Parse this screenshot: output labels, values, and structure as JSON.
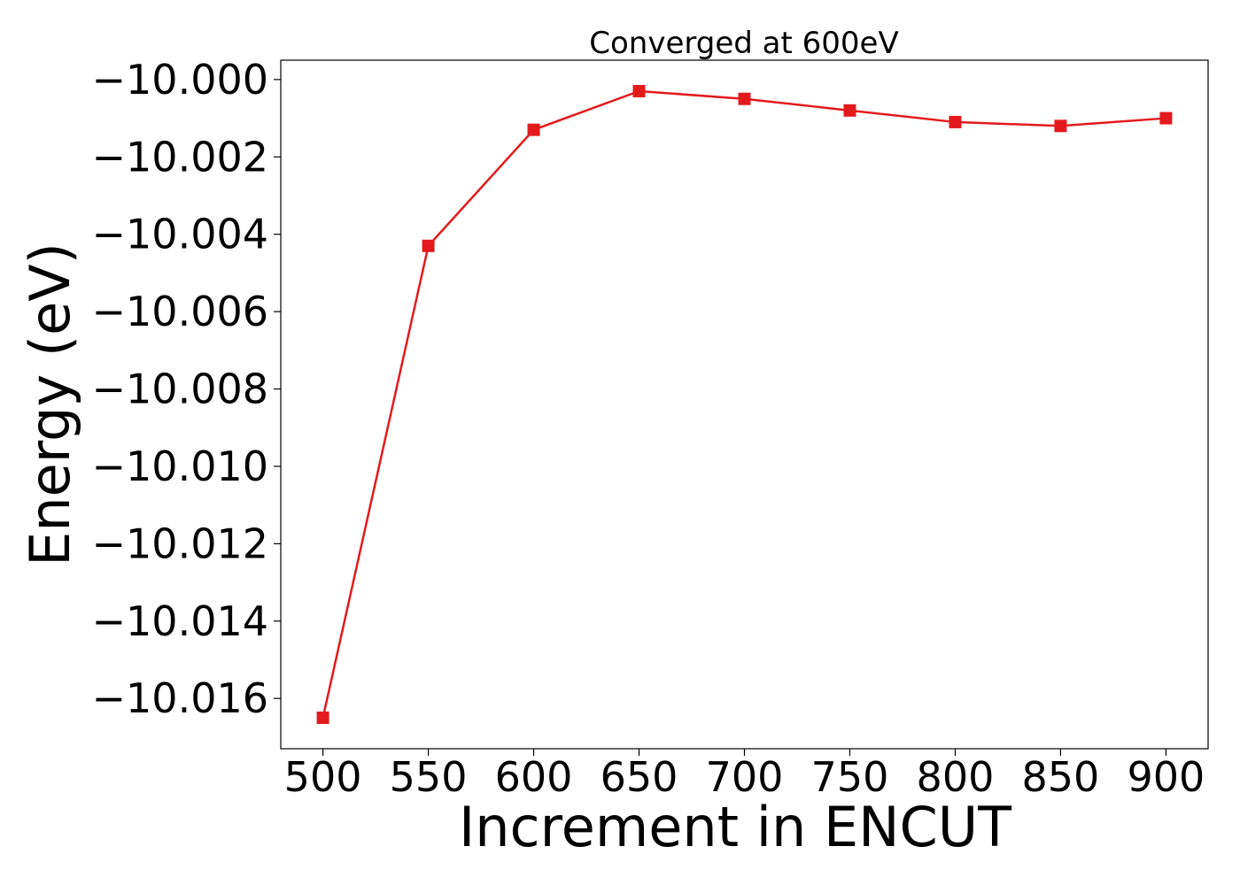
{
  "chart_data": {
    "type": "line",
    "title": "Converged at 600eV",
    "xlabel": "Increment in ENCUT",
    "ylabel": "Energy (eV)",
    "x": [
      500,
      550,
      600,
      650,
      700,
      750,
      800,
      850,
      900
    ],
    "series": [
      {
        "values": [
          -10.0165,
          -10.0043,
          -10.0013,
          -10.0003,
          -10.0005,
          -10.0008,
          -10.0011,
          -10.0012,
          -10.001
        ],
        "color": "#e31a1c",
        "marker": "square"
      }
    ],
    "xlim": [
      480,
      920
    ],
    "ylim": [
      -10.0173,
      -9.9995
    ],
    "xticks": [
      500,
      550,
      600,
      650,
      700,
      750,
      800,
      850,
      900
    ],
    "xtick_labels": [
      "500",
      "550",
      "600",
      "650",
      "700",
      "750",
      "800",
      "850",
      "900"
    ],
    "yticks": [
      -10.0,
      -10.002,
      -10.004,
      -10.006,
      -10.008,
      -10.01,
      -10.012,
      -10.014,
      -10.016
    ],
    "ytick_labels": [
      "−10.000",
      "−10.002",
      "−10.004",
      "−10.006",
      "−10.008",
      "−10.010",
      "−10.012",
      "−10.014",
      "−10.016"
    ],
    "grid": false,
    "legend": false
  }
}
